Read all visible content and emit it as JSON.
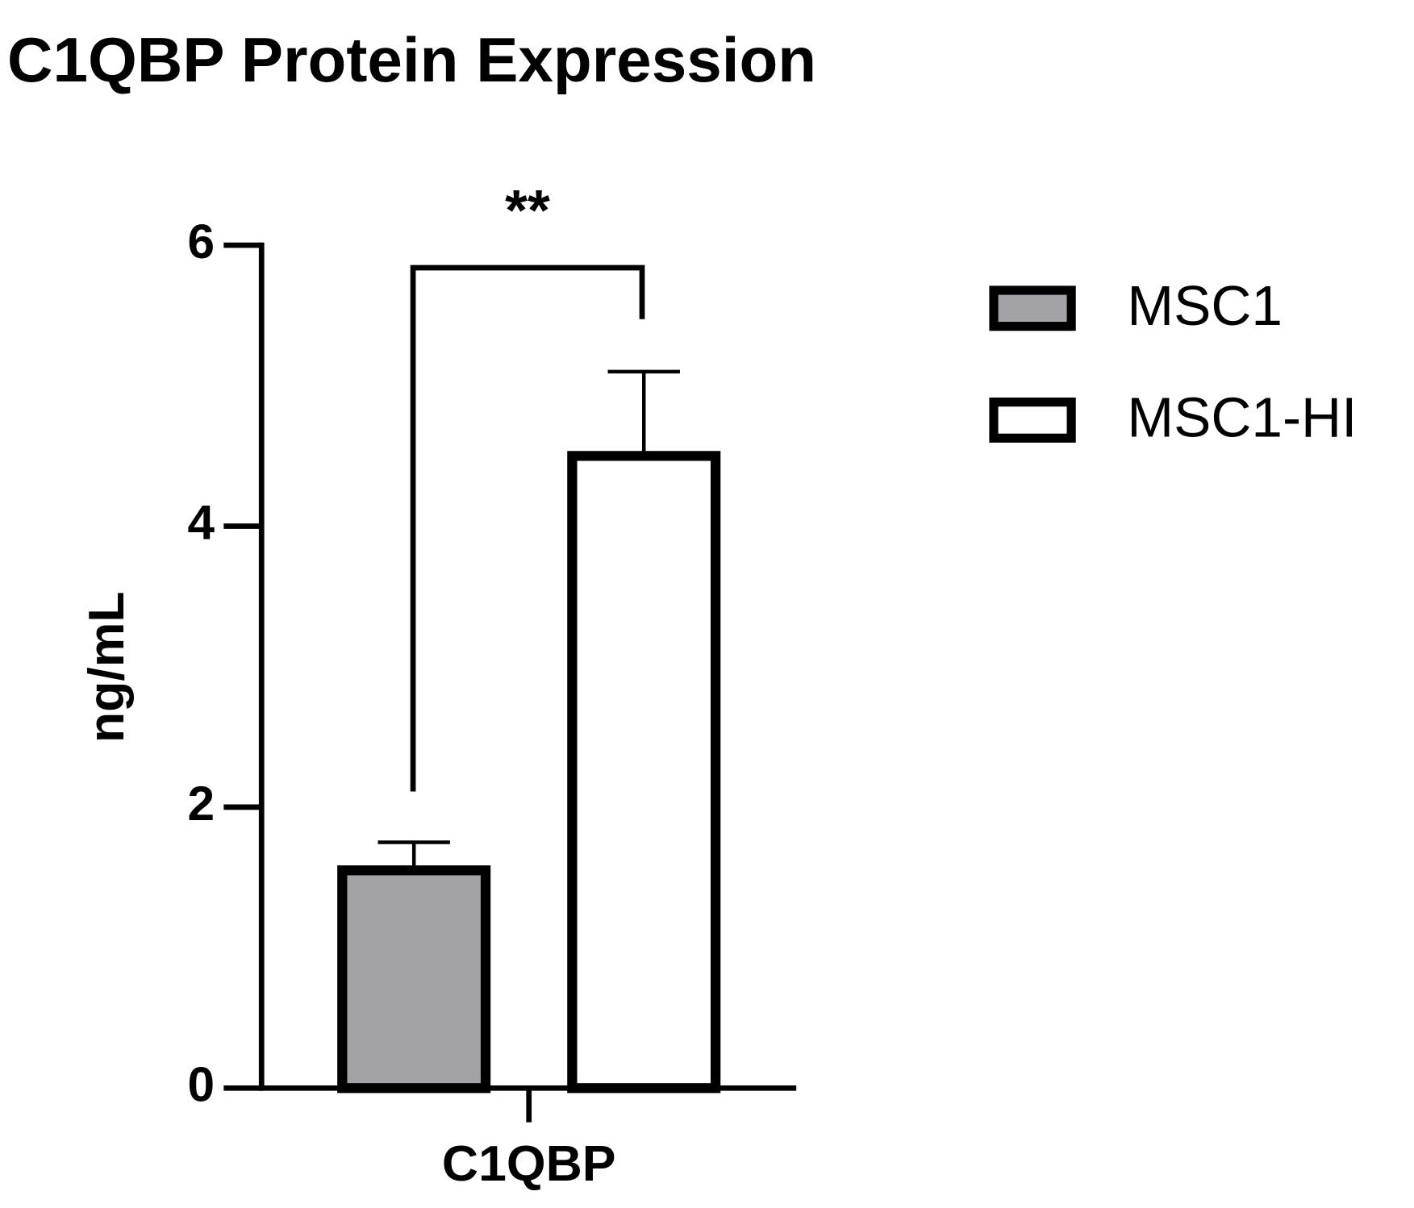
{
  "chart_data": {
    "type": "bar",
    "title": "C1QBP Protein Expression",
    "y_label": "ng/mL",
    "categories": [
      "C1QBP"
    ],
    "series": [
      {
        "name": "MSC1",
        "color": "#a3a2a7",
        "values": [
          1.55
        ],
        "errors": [
          0.2
        ]
      },
      {
        "name": "MSC1-HI",
        "color": "#ffffff",
        "values": [
          4.5
        ],
        "errors": [
          0.6
        ]
      }
    ],
    "ylim": [
      0,
      6
    ],
    "yticks": [
      0,
      2,
      4,
      6
    ],
    "significance": "**",
    "legend": "right"
  }
}
